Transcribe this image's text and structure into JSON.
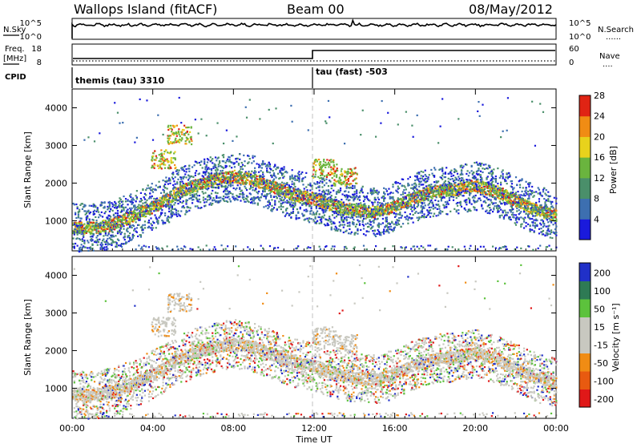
{
  "header": {
    "station": "Wallops Island (fitACF)",
    "beam": "Beam 00",
    "date": "08/May/2012"
  },
  "side_labels": {
    "nsky": "N.Sky",
    "nsearch": "N.Search",
    "freq_line1": "Freq.",
    "freq_line2": "[MHz]",
    "nave": "Nave",
    "cpid": "CPID",
    "dots": "......",
    "dots_short": "....",
    "power_title": "Power [dB]",
    "velocity_title": "Velocity [m s⁻¹]"
  },
  "chart_data": [
    {
      "type": "line",
      "name": "noise-panel",
      "series_labels": [
        "N.Sky",
        "N.Search"
      ],
      "left_ticks": [
        "10^5",
        "10^0"
      ],
      "right_ticks": [
        "10^5",
        "10^0"
      ],
      "approx_level": "near 10^5 throughout the day"
    },
    {
      "type": "line",
      "name": "frequency-nave-panel",
      "left_ticks": [
        "18",
        "8"
      ],
      "right_ticks": [
        "60",
        "0"
      ],
      "freq_steps": [
        {
          "time": "00:00",
          "level": "low"
        },
        {
          "time": "12:00",
          "level": "high"
        }
      ],
      "cpid_segments": [
        {
          "start": "00:00",
          "end": "12:00",
          "label": "themis (tau) 3310"
        },
        {
          "start": "12:00",
          "end": "24:00",
          "label": "tau (fast) -503"
        }
      ]
    },
    {
      "type": "heatmap",
      "name": "power",
      "ylabel": "Slant Range [km]",
      "yticks": [
        "1000",
        "2000",
        "3000",
        "4000"
      ],
      "ylim": [
        200,
        4500
      ],
      "colorbar_title": "Power [dB]",
      "colorbar_ticks": [
        "4",
        "8",
        "12",
        "16",
        "20",
        "24",
        "28"
      ],
      "colorbar_colors": [
        "#1a1adc",
        "#3d6fb0",
        "#4a8f6a",
        "#6ab43e",
        "#e8d21c",
        "#f08c14",
        "#e02414"
      ],
      "scatter_trace_km": [
        [
          0,
          850
        ],
        [
          1,
          820
        ],
        [
          2,
          920
        ],
        [
          3,
          1150
        ],
        [
          4,
          1380
        ],
        [
          5,
          1700
        ],
        [
          6,
          1950
        ],
        [
          7,
          2100
        ],
        [
          8,
          2200
        ],
        [
          9,
          2100
        ],
        [
          10,
          1900
        ],
        [
          11,
          1700
        ],
        [
          12,
          1600
        ],
        [
          13,
          1400
        ],
        [
          14,
          1300
        ],
        [
          15,
          1250
        ],
        [
          16,
          1400
        ],
        [
          17,
          1650
        ],
        [
          18,
          1800
        ],
        [
          19,
          1850
        ],
        [
          20,
          1950
        ],
        [
          21,
          1800
        ],
        [
          22,
          1550
        ],
        [
          23,
          1300
        ],
        [
          24,
          1150
        ]
      ],
      "patches_km": [
        [
          4.5,
          2650
        ],
        [
          5.3,
          3300
        ],
        [
          12.5,
          2400
        ],
        [
          13.5,
          2200
        ]
      ]
    },
    {
      "type": "heatmap",
      "name": "velocity",
      "ylabel": "Slant Range [km]",
      "yticks": [
        "1000",
        "2000",
        "3000",
        "4000"
      ],
      "ylim": [
        200,
        4500
      ],
      "colorbar_title": "Velocity [m s⁻¹]",
      "colorbar_ticks": [
        "200",
        "100",
        "50",
        "15",
        "-15",
        "-50",
        "-100",
        "-200"
      ],
      "colorbar_colors": [
        "#2030c8",
        "#2e7a54",
        "#5cc23c",
        "#c8c8c0",
        "#c8c8c0",
        "#f08c14",
        "#e85a10",
        "#e01818"
      ],
      "xlabel": "Time UT",
      "xticks": [
        "00:00",
        "04:00",
        "08:00",
        "12:00",
        "16:00",
        "20:00",
        "00:00"
      ]
    }
  ]
}
